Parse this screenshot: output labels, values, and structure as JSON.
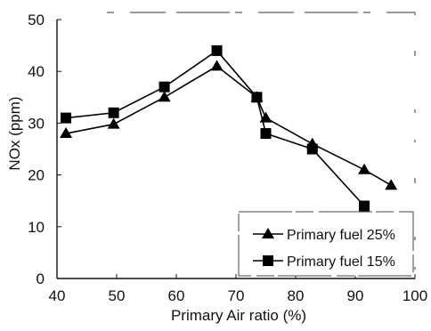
{
  "chart_data": {
    "type": "line",
    "title": "",
    "xlabel": "Primary Air ratio (%)",
    "ylabel": "NOx (ppm)",
    "xlim": [
      40,
      100
    ],
    "ylim": [
      0,
      50
    ],
    "xticks": [
      40,
      50,
      60,
      70,
      80,
      90,
      100
    ],
    "yticks": [
      0,
      10,
      20,
      30,
      40,
      50
    ],
    "grid": false,
    "legend_position": "bottom-right",
    "series": [
      {
        "name": "Primary fuel 25%",
        "marker": "triangle",
        "color": "#000000",
        "x": [
          41.5,
          49.5,
          58,
          66.8,
          73.5,
          75,
          82.8,
          91.5,
          96
        ],
        "y": [
          28,
          29.8,
          35,
          41,
          35,
          31,
          26,
          21,
          18
        ]
      },
      {
        "name": "Primary fuel 15%",
        "marker": "square",
        "color": "#000000",
        "x": [
          41.5,
          49.5,
          58,
          66.8,
          73.5,
          75,
          82.8,
          91.5
        ],
        "y": [
          31,
          32,
          37,
          44,
          35,
          28,
          25,
          14
        ]
      }
    ]
  }
}
